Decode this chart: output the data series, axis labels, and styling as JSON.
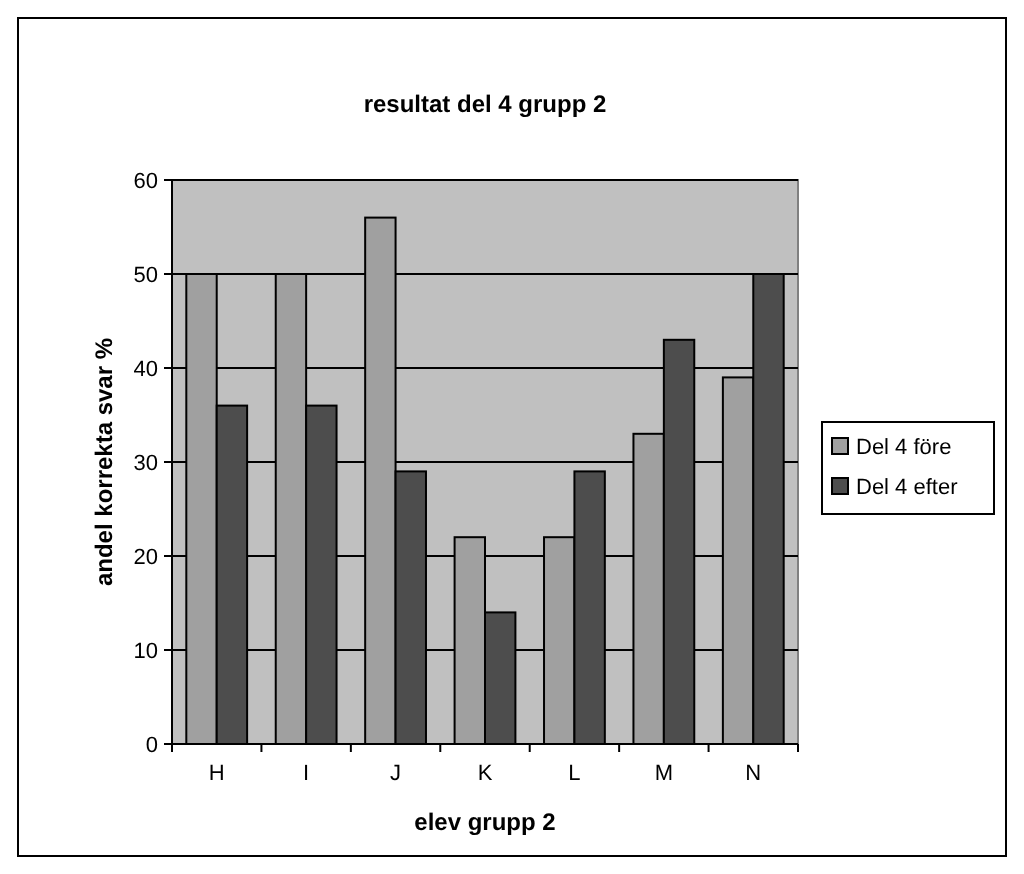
{
  "chart_data": {
    "type": "bar",
    "title": "resultat del 4 grupp 2",
    "xlabel": "elev grupp 2",
    "ylabel": "andel korrekta svar %",
    "categories": [
      "H",
      "I",
      "J",
      "K",
      "L",
      "M",
      "N"
    ],
    "series": [
      {
        "name": "Del 4 före",
        "color": "#a0a0a0",
        "values": [
          50,
          50,
          56,
          22,
          22,
          33,
          39
        ]
      },
      {
        "name": "Del 4 efter",
        "color": "#4d4d4d",
        "values": [
          36,
          36,
          29,
          14,
          29,
          43,
          50
        ]
      }
    ],
    "ylim": [
      0,
      60
    ],
    "yticks": [
      0,
      10,
      20,
      30,
      40,
      50,
      60
    ],
    "grid": "y",
    "legend": "right"
  }
}
